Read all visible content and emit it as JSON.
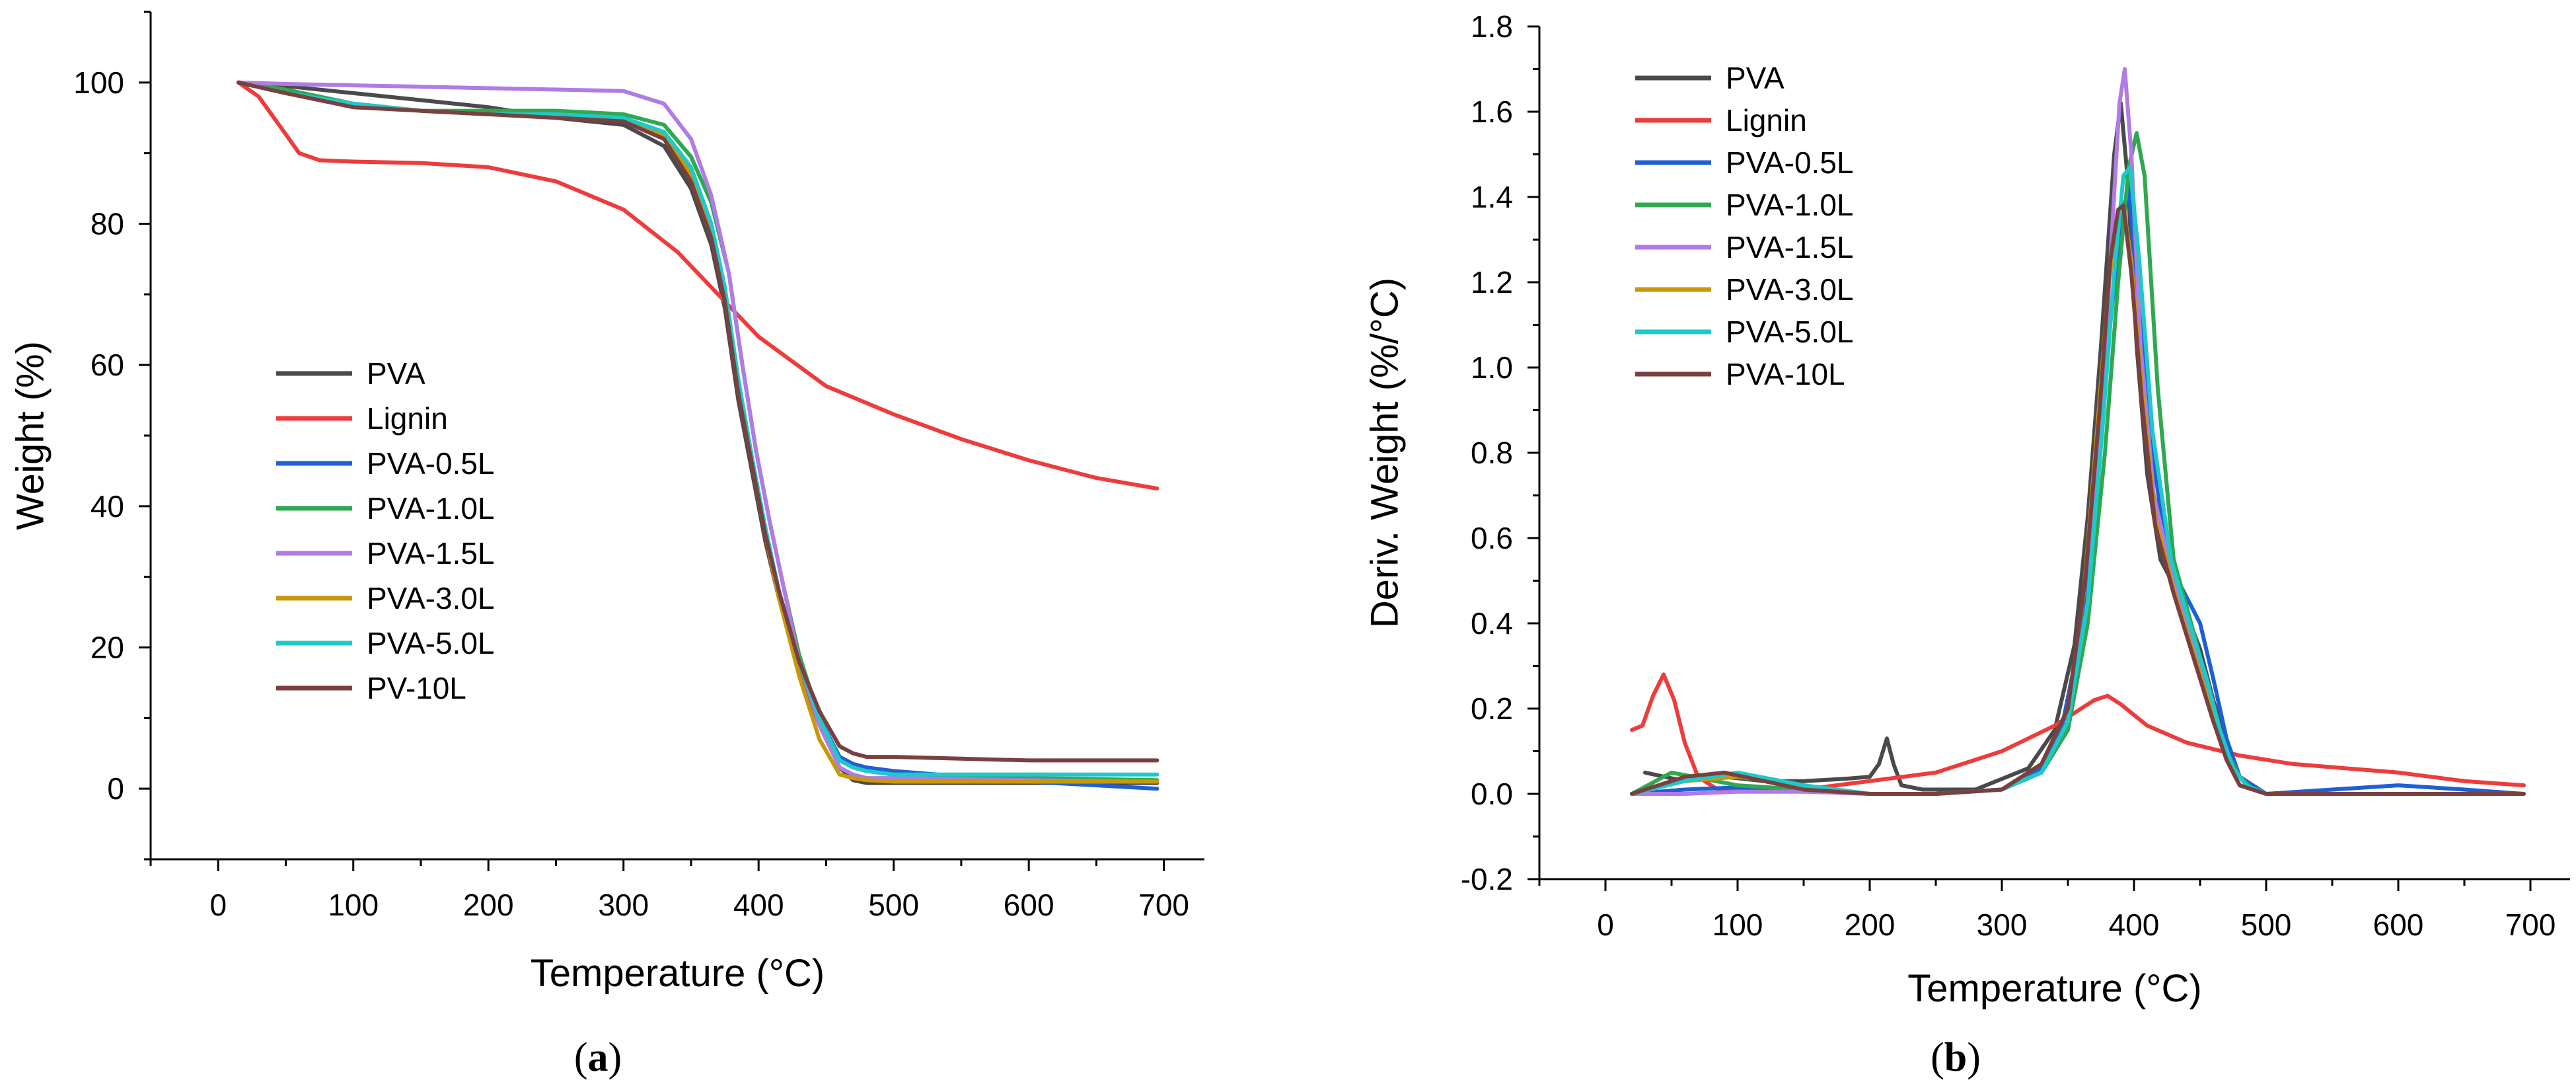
{
  "colors": {
    "PVA": "#4a4a4a",
    "Lignin": "#ee3b3b",
    "PVA-0.5L": "#1f5fd6",
    "PVA-1.0L": "#2fa84f",
    "PVA-1.5L": "#b07be6",
    "PVA-3.0L": "#c9980a",
    "PVA-5.0L": "#1ec9c9",
    "PVA-10L": "#7a4040"
  },
  "chart_data": [
    {
      "type": "line",
      "panel_label": "a",
      "title": "",
      "xlabel": "Temperature (°C)",
      "ylabel": "Weight (%)",
      "xlim": [
        -50,
        730
      ],
      "ylim": [
        -10,
        110
      ],
      "xticks": [
        0,
        100,
        200,
        300,
        400,
        500,
        600,
        700
      ],
      "yticks": [
        0,
        20,
        40,
        60,
        80,
        100
      ],
      "legend_position": "center-left",
      "series": [
        {
          "name": "PVA",
          "color_key": "PVA",
          "x": [
            15,
            50,
            100,
            150,
            200,
            250,
            300,
            330,
            350,
            365,
            375,
            385,
            395,
            405,
            415,
            430,
            445,
            460,
            470,
            480,
            500,
            600,
            695
          ],
          "y": [
            100,
            99.5,
            98.5,
            97.5,
            96.5,
            95,
            94,
            91,
            85,
            77,
            68,
            55,
            45,
            35,
            27,
            17,
            9,
            3,
            1.2,
            0.8,
            0.8,
            0.8,
            0.8
          ]
        },
        {
          "name": "Lignin",
          "color_key": "Lignin",
          "x": [
            15,
            30,
            45,
            60,
            75,
            100,
            150,
            200,
            250,
            300,
            340,
            370,
            400,
            450,
            500,
            550,
            600,
            650,
            695
          ],
          "y": [
            100,
            98,
            94,
            90,
            89,
            88.8,
            88.6,
            88,
            86,
            82,
            76,
            70,
            64,
            57,
            53,
            49.5,
            46.5,
            44,
            42.5
          ]
        },
        {
          "name": "PVA-0.5L",
          "color_key": "PVA-0.5L",
          "x": [
            15,
            50,
            100,
            150,
            200,
            250,
            300,
            330,
            350,
            365,
            375,
            385,
            395,
            405,
            415,
            430,
            445,
            460,
            470,
            480,
            500,
            600,
            695
          ],
          "y": [
            100,
            99,
            97,
            96,
            95.5,
            95.5,
            95,
            92.5,
            87,
            79,
            70,
            57,
            46,
            36,
            28,
            18,
            10,
            4.5,
            3.5,
            3,
            2.5,
            1,
            0
          ]
        },
        {
          "name": "PVA-1.0L",
          "color_key": "PVA-1.0L",
          "x": [
            15,
            50,
            100,
            150,
            200,
            250,
            300,
            330,
            350,
            365,
            378,
            388,
            398,
            408,
            418,
            430,
            445,
            460,
            470,
            480,
            500,
            600,
            695
          ],
          "y": [
            100,
            99,
            97,
            96,
            96,
            96,
            95.5,
            94,
            89.5,
            83,
            73,
            60,
            48,
            38,
            29,
            19,
            10,
            4,
            3,
            2.5,
            2,
            1.5,
            1.2
          ]
        },
        {
          "name": "PVA-1.5L",
          "color_key": "PVA-1.5L",
          "x": [
            15,
            50,
            100,
            150,
            200,
            250,
            300,
            330,
            350,
            365,
            378,
            388,
            398,
            408,
            418,
            430,
            445,
            460,
            470,
            480,
            500,
            600,
            695
          ],
          "y": [
            100,
            99.8,
            99.6,
            99.4,
            99.2,
            99,
            98.8,
            97,
            92,
            84,
            73,
            60,
            48,
            38,
            29,
            18,
            9,
            3,
            2,
            1.5,
            1.5,
            1.2,
            1
          ]
        },
        {
          "name": "PVA-3.0L",
          "color_key": "PVA-3.0L",
          "x": [
            15,
            50,
            100,
            150,
            200,
            250,
            300,
            330,
            350,
            365,
            375,
            385,
            395,
            405,
            415,
            430,
            445,
            460,
            470,
            480,
            500,
            600,
            695
          ],
          "y": [
            100,
            98.5,
            97,
            96,
            95.5,
            95.5,
            95,
            92.5,
            87,
            79,
            70,
            57,
            46,
            36,
            27,
            16,
            7,
            2,
            1.5,
            1.2,
            1,
            1,
            1
          ]
        },
        {
          "name": "PVA-5.0L",
          "color_key": "PVA-5.0L",
          "x": [
            15,
            50,
            100,
            150,
            200,
            250,
            300,
            330,
            350,
            365,
            375,
            385,
            395,
            405,
            415,
            430,
            445,
            460,
            470,
            480,
            500,
            600,
            695
          ],
          "y": [
            100,
            98.5,
            97,
            96,
            95.5,
            95.5,
            95,
            93,
            88,
            80,
            71,
            58,
            47,
            37,
            28,
            18,
            10,
            4,
            3,
            2.5,
            2,
            2,
            2
          ]
        },
        {
          "name": "PV-10L",
          "color_key": "PVA-10L",
          "x": [
            15,
            50,
            100,
            150,
            200,
            250,
            300,
            330,
            350,
            365,
            375,
            385,
            395,
            405,
            415,
            430,
            445,
            460,
            470,
            480,
            500,
            600,
            695
          ],
          "y": [
            100,
            98.5,
            96.5,
            96,
            95.5,
            95,
            94.5,
            92,
            86,
            78,
            69,
            56,
            46,
            36,
            28,
            18,
            11,
            6,
            5,
            4.5,
            4.5,
            4,
            4
          ]
        }
      ]
    },
    {
      "type": "line",
      "panel_label": "b",
      "title": "",
      "xlabel": "Temperature (°C)",
      "ylabel": "Deriv. Weight (%/°C)",
      "xlim": [
        -50,
        730
      ],
      "ylim": [
        -0.2,
        1.8
      ],
      "xticks": [
        0,
        100,
        200,
        300,
        400,
        500,
        600,
        700
      ],
      "yticks": [
        -0.2,
        0.0,
        0.2,
        0.4,
        0.6,
        0.8,
        1.0,
        1.2,
        1.4,
        1.6,
        1.8
      ],
      "legend_position": "top-left",
      "series": [
        {
          "name": "PVA",
          "color_key": "PVA",
          "x": [
            30,
            60,
            90,
            120,
            150,
            180,
            200,
            207,
            213,
            218,
            224,
            240,
            280,
            320,
            340,
            355,
            365,
            375,
            385,
            390,
            395,
            402,
            410,
            420,
            435,
            450,
            460,
            470,
            480,
            490,
            500,
            550,
            600,
            650,
            695
          ],
          "y": [
            0.05,
            0.03,
            0.04,
            0.03,
            0.03,
            0.035,
            0.04,
            0.07,
            0.13,
            0.07,
            0.02,
            0.01,
            0.01,
            0.06,
            0.15,
            0.35,
            0.65,
            1.05,
            1.5,
            1.62,
            1.45,
            1.05,
            0.75,
            0.55,
            0.46,
            0.34,
            0.22,
            0.12,
            0.04,
            0.01,
            0,
            0,
            0,
            0,
            0
          ]
        },
        {
          "name": "Lignin",
          "color_key": "Lignin",
          "x": [
            20,
            28,
            36,
            44,
            52,
            60,
            70,
            85,
            100,
            150,
            200,
            250,
            300,
            340,
            370,
            380,
            390,
            410,
            440,
            480,
            520,
            600,
            650,
            695
          ],
          "y": [
            0.15,
            0.16,
            0.23,
            0.28,
            0.22,
            0.12,
            0.04,
            0.01,
            0.01,
            0.01,
            0.03,
            0.05,
            0.1,
            0.16,
            0.22,
            0.23,
            0.21,
            0.16,
            0.12,
            0.09,
            0.07,
            0.05,
            0.03,
            0.02
          ]
        },
        {
          "name": "PVA-0.5L",
          "color_key": "PVA-0.5L",
          "x": [
            20,
            60,
            100,
            150,
            200,
            250,
            300,
            330,
            345,
            360,
            372,
            382,
            390,
            396,
            402,
            412,
            425,
            440,
            450,
            460,
            470,
            480,
            500,
            550,
            600,
            650,
            695
          ],
          "y": [
            0,
            0.01,
            0.015,
            0.01,
            0,
            0,
            0.01,
            0.06,
            0.15,
            0.38,
            0.72,
            1.1,
            1.35,
            1.42,
            1.2,
            0.85,
            0.55,
            0.46,
            0.4,
            0.27,
            0.13,
            0.04,
            0,
            0.01,
            0.02,
            0.01,
            0
          ]
        },
        {
          "name": "PVA-1.0L",
          "color_key": "PVA-1.0L",
          "x": [
            20,
            50,
            100,
            150,
            200,
            250,
            300,
            330,
            350,
            365,
            378,
            388,
            396,
            402,
            408,
            418,
            430,
            445,
            460,
            470,
            480,
            490,
            500,
            600,
            695
          ],
          "y": [
            0,
            0.05,
            0.02,
            0.01,
            0,
            0,
            0.01,
            0.05,
            0.15,
            0.4,
            0.8,
            1.2,
            1.47,
            1.55,
            1.45,
            0.95,
            0.55,
            0.38,
            0.2,
            0.1,
            0.04,
            0.01,
            0,
            0,
            0
          ]
        },
        {
          "name": "PVA-1.5L",
          "color_key": "PVA-1.5L",
          "x": [
            20,
            60,
            100,
            150,
            200,
            250,
            300,
            330,
            350,
            365,
            375,
            383,
            389,
            393,
            398,
            405,
            415,
            430,
            445,
            460,
            470,
            480,
            500,
            600,
            695
          ],
          "y": [
            0,
            0,
            0.005,
            0.005,
            0,
            0,
            0.01,
            0.05,
            0.17,
            0.45,
            0.85,
            1.3,
            1.62,
            1.7,
            1.5,
            1.05,
            0.7,
            0.5,
            0.34,
            0.18,
            0.08,
            0.02,
            0,
            0,
            0
          ]
        },
        {
          "name": "PVA-3.0L",
          "color_key": "PVA-3.0L",
          "x": [
            20,
            60,
            100,
            150,
            200,
            250,
            300,
            330,
            350,
            362,
            372,
            381,
            388,
            392,
            398,
            406,
            416,
            430,
            445,
            460,
            470,
            480,
            500,
            600,
            695
          ],
          "y": [
            0,
            0.03,
            0.04,
            0.02,
            0,
            0,
            0.01,
            0.07,
            0.2,
            0.47,
            0.85,
            1.2,
            1.36,
            1.38,
            1.25,
            0.95,
            0.65,
            0.48,
            0.33,
            0.18,
            0.08,
            0.02,
            0,
            0,
            0
          ]
        },
        {
          "name": "PVA-5.0L",
          "color_key": "PVA-5.0L",
          "x": [
            20,
            60,
            100,
            150,
            200,
            250,
            300,
            330,
            350,
            365,
            376,
            385,
            392,
            397,
            404,
            414,
            428,
            442,
            455,
            465,
            475,
            485,
            500,
            600,
            695
          ],
          "y": [
            0,
            0.03,
            0.05,
            0.02,
            0,
            0,
            0.01,
            0.05,
            0.17,
            0.45,
            0.85,
            1.22,
            1.45,
            1.47,
            1.25,
            0.85,
            0.55,
            0.4,
            0.27,
            0.15,
            0.06,
            0.02,
            0,
            0,
            0
          ]
        },
        {
          "name": "PVA-10L",
          "color_key": "PVA-10L",
          "x": [
            20,
            40,
            60,
            90,
            120,
            150,
            200,
            250,
            300,
            330,
            350,
            363,
            374,
            382,
            388,
            392,
            398,
            406,
            416,
            430,
            445,
            460,
            470,
            480,
            500,
            600,
            695
          ],
          "y": [
            0,
            0.02,
            0.04,
            0.05,
            0.03,
            0.01,
            0,
            0,
            0.01,
            0.07,
            0.2,
            0.5,
            0.9,
            1.25,
            1.37,
            1.38,
            1.22,
            0.92,
            0.63,
            0.47,
            0.32,
            0.17,
            0.08,
            0.02,
            0,
            0,
            0
          ]
        }
      ]
    }
  ]
}
